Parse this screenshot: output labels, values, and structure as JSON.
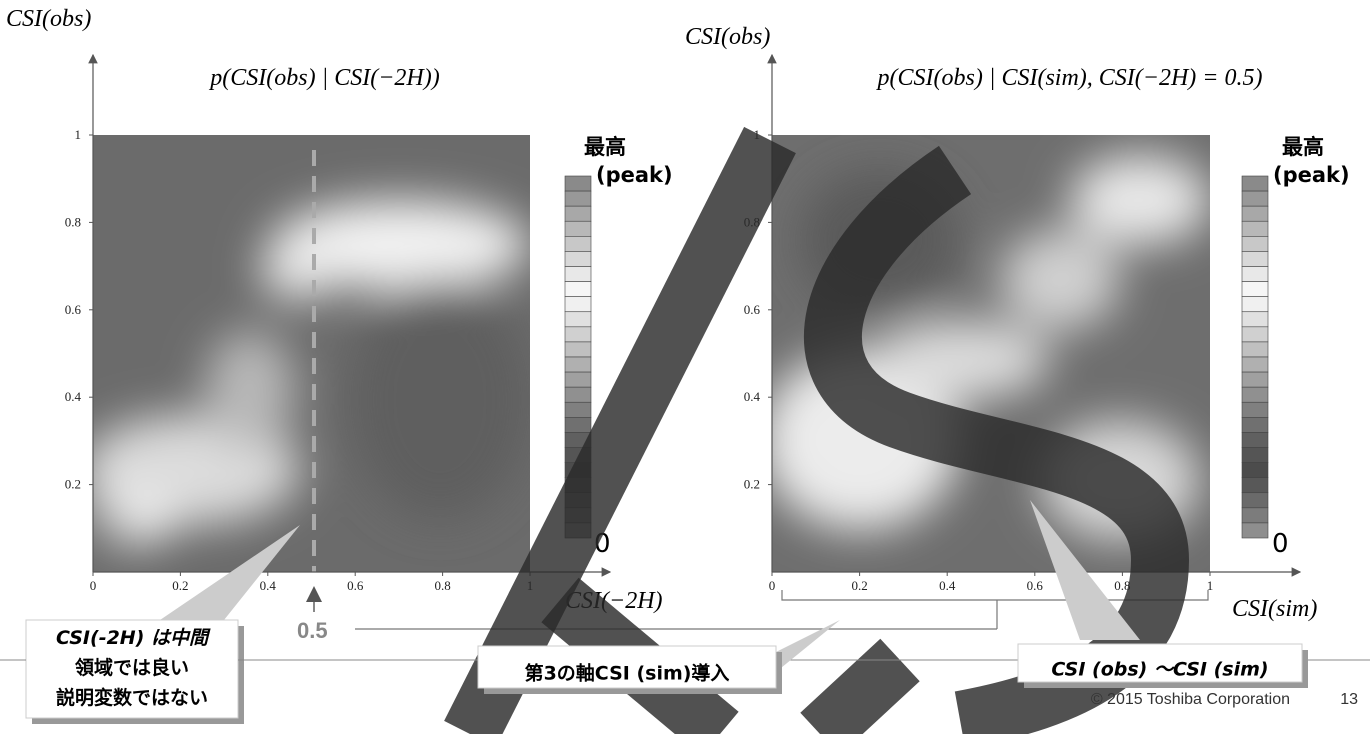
{
  "left_plot": {
    "y_axis_label": "CSI(obs)",
    "title": "p(CSI(obs) | CSI(−2H))",
    "x_axis_label": "CSI(−2H)",
    "xticks": [
      0,
      0.2,
      0.4,
      0.6,
      0.8,
      1
    ],
    "yticks": [
      0.2,
      0.4,
      0.6,
      0.8,
      1
    ],
    "colorbar": {
      "top": "最高",
      "top_sub": "(peak)",
      "bottom": "0"
    }
  },
  "right_plot": {
    "y_axis_label": "CSI(obs)",
    "title": "p(CSI(obs) | CSI(sim), CSI(−2H) = 0.5)",
    "x_axis_label": "CSI(sim)",
    "xticks": [
      0,
      0.2,
      0.4,
      0.6,
      0.8,
      1
    ],
    "yticks": [
      0.2,
      0.4,
      0.6,
      0.8,
      1
    ],
    "colorbar": {
      "top": "最高",
      "top_sub": "(peak)",
      "bottom": "0"
    }
  },
  "marker": "0.5",
  "callouts": {
    "left": [
      "CSI(-2H) は中間",
      "領域では良い",
      "説明変数ではない"
    ],
    "center": "第3の軸CSI (sim)導入",
    "right": "CSI (obs) ～CSI (sim)"
  },
  "footer": {
    "copyright": "© 2015 Toshiba Corporation",
    "page": "13"
  }
}
